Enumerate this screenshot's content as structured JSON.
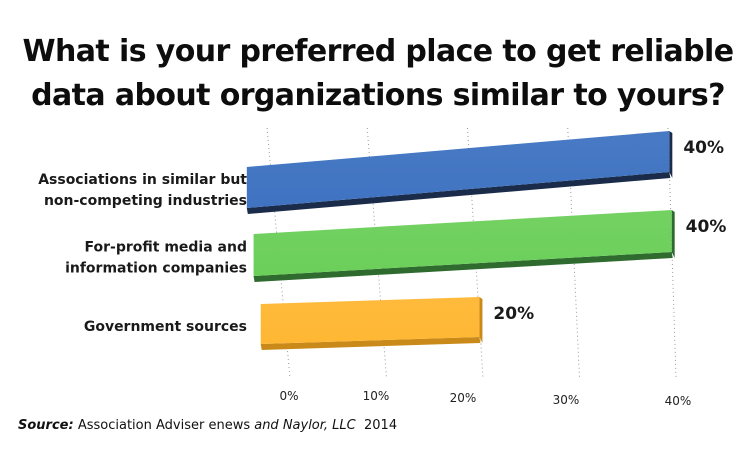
{
  "chart_data": {
    "type": "bar",
    "orientation": "horizontal",
    "title_lines": [
      "What is your preferred place to get reliable",
      "data about organizations similar to yours?"
    ],
    "categories": [
      {
        "lines": [
          "Associations in similar but",
          "non-competing industries"
        ]
      },
      {
        "lines": [
          "For-profit media and",
          "information companies"
        ]
      },
      {
        "lines": [
          "Government sources"
        ]
      }
    ],
    "values": [
      40,
      40,
      20
    ],
    "value_labels": [
      "40%",
      "40%",
      "20%"
    ],
    "xlim": [
      0,
      40
    ],
    "x_ticks": [
      "0%",
      "10%",
      "20%",
      "30%",
      "40%"
    ],
    "grid": "dotted vertical",
    "colors": {
      "bars": [
        "#3f73c1",
        "#6ccf5a",
        "#ffb733"
      ],
      "bar_sides": [
        "#1a2c4a",
        "#2f6b2f",
        "#c98a1a"
      ]
    }
  },
  "source": {
    "lead": "Source:",
    "text1": " Association Adviser ",
    "enews": "enews",
    "text2": " and Naylor, LLC",
    "year": "2014"
  }
}
